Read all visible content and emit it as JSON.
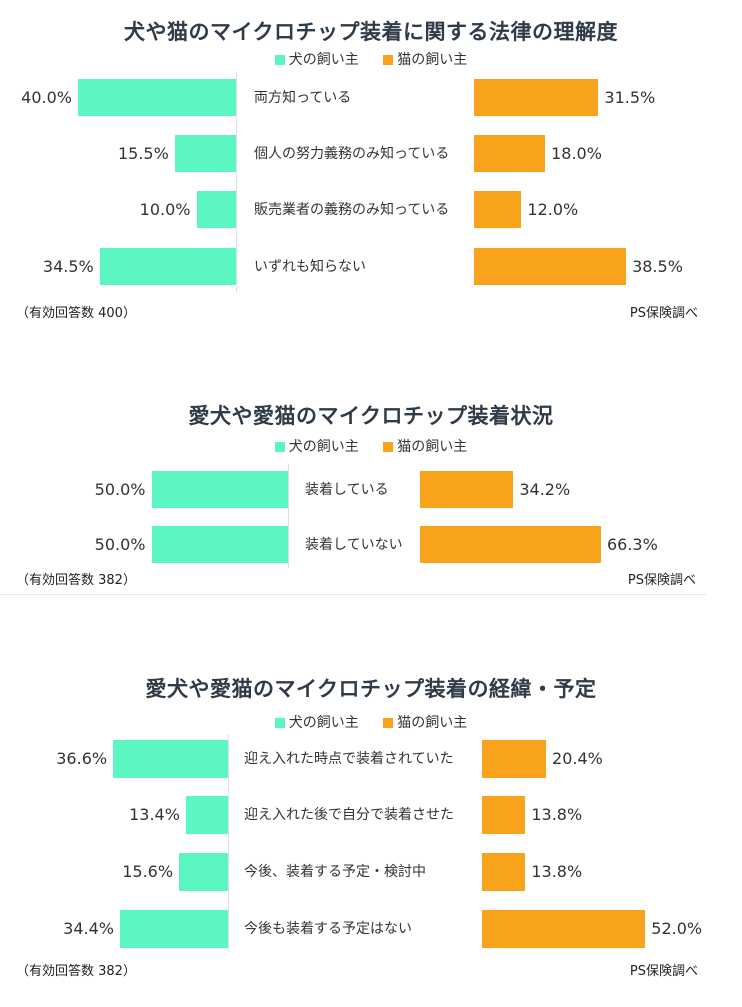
{
  "legend": {
    "dog": "犬の飼い主",
    "cat": "猫の飼い主"
  },
  "colors": {
    "dog": "#5cf7c0",
    "cat": "#f9a21b"
  },
  "chart_data": [
    {
      "type": "bar",
      "title": "犬や猫のマイクロチップ装着に関する法律の理解度",
      "categories": [
        "両方知っている",
        "個人の努力義務のみ知っている",
        "販売業者の義務のみ知っている",
        "いずれも知らない"
      ],
      "series": [
        {
          "name": "犬の飼い主",
          "values": [
            40.0,
            15.5,
            10.0,
            34.5
          ],
          "labels": [
            "40.0%",
            "15.5%",
            "10.0%",
            "34.5%"
          ]
        },
        {
          "name": "猫の飼い主",
          "values": [
            31.5,
            18.0,
            12.0,
            38.5
          ],
          "labels": [
            "31.5%",
            "18.0%",
            "12.0%",
            "38.5%"
          ]
        }
      ],
      "note": "（有効回答数 400）",
      "source": "PS保険調べ"
    },
    {
      "type": "bar",
      "title": "愛犬や愛猫のマイクロチップ装着状況",
      "categories": [
        "装着している",
        "装着していない"
      ],
      "series": [
        {
          "name": "犬の飼い主",
          "values": [
            50.0,
            50.0
          ],
          "labels": [
            "50.0%",
            "50.0%"
          ]
        },
        {
          "name": "猫の飼い主",
          "values": [
            34.2,
            66.3
          ],
          "labels": [
            "34.2%",
            "66.3%"
          ]
        }
      ],
      "note": "（有効回答数 382）",
      "source": "PS保険調べ"
    },
    {
      "type": "bar",
      "title": "愛犬や愛猫のマイクロチップ装着の経緯・予定",
      "categories": [
        "迎え入れた時点で装着されていた",
        "迎え入れた後で自分で装着させた",
        "今後、装着する予定・検討中",
        "今後も装着する予定はない"
      ],
      "series": [
        {
          "name": "犬の飼い主",
          "values": [
            36.6,
            13.4,
            15.6,
            34.4
          ],
          "labels": [
            "36.6%",
            "13.4%",
            "15.6%",
            "34.4%"
          ]
        },
        {
          "name": "猫の飼い主",
          "values": [
            20.4,
            13.8,
            13.8,
            52.0
          ],
          "labels": [
            "20.4%",
            "13.8%",
            "13.8%",
            "52.0%"
          ]
        }
      ],
      "note": "（有効回答数 382）",
      "source": "PS保険調べ"
    }
  ]
}
